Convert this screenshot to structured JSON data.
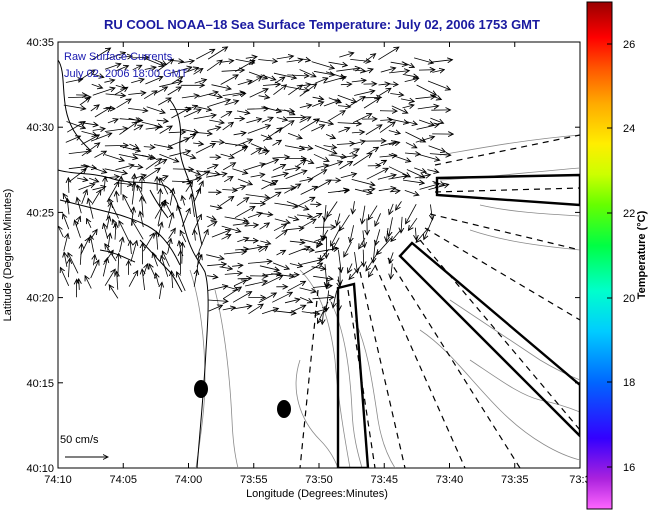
{
  "title": "RU COOL  NOAA–18  Sea Surface Temperature:  July 02, 2006 1753 GMT",
  "annotation": {
    "line1": "Raw Surface Currents",
    "line2": "July 02, 2006 18:00 GMT"
  },
  "x_axis": {
    "label": "Longitude (Degrees:Minutes)",
    "ticks": [
      "74:10",
      "74:05",
      "74:00",
      "73:55",
      "73:50",
      "73:45",
      "73:40",
      "73:35",
      "73:3"
    ]
  },
  "y_axis": {
    "label": "Latitude (Degrees:Minutes)",
    "ticks": [
      "40:35",
      "40:30",
      "40:25",
      "40:20",
      "40:15",
      "40:10"
    ]
  },
  "colorbar": {
    "label": "Temperature (°C)",
    "ticks": [
      "26",
      "24",
      "22",
      "20",
      "18",
      "16"
    ],
    "colors": [
      "#ff66ff",
      "#9900cc",
      "#0000ff",
      "#00aaff",
      "#00ffff",
      "#00ff99",
      "#00ff00",
      "#99ff00",
      "#ffff00",
      "#ffaa00",
      "#ff5500",
      "#ff0000",
      "#990000"
    ]
  },
  "scale": {
    "label": "50 cm/s"
  },
  "colors": {
    "title": "#1a1aa0",
    "annotation": "#1a1ab0",
    "arrows": "#000000",
    "contours": "#888888"
  }
}
